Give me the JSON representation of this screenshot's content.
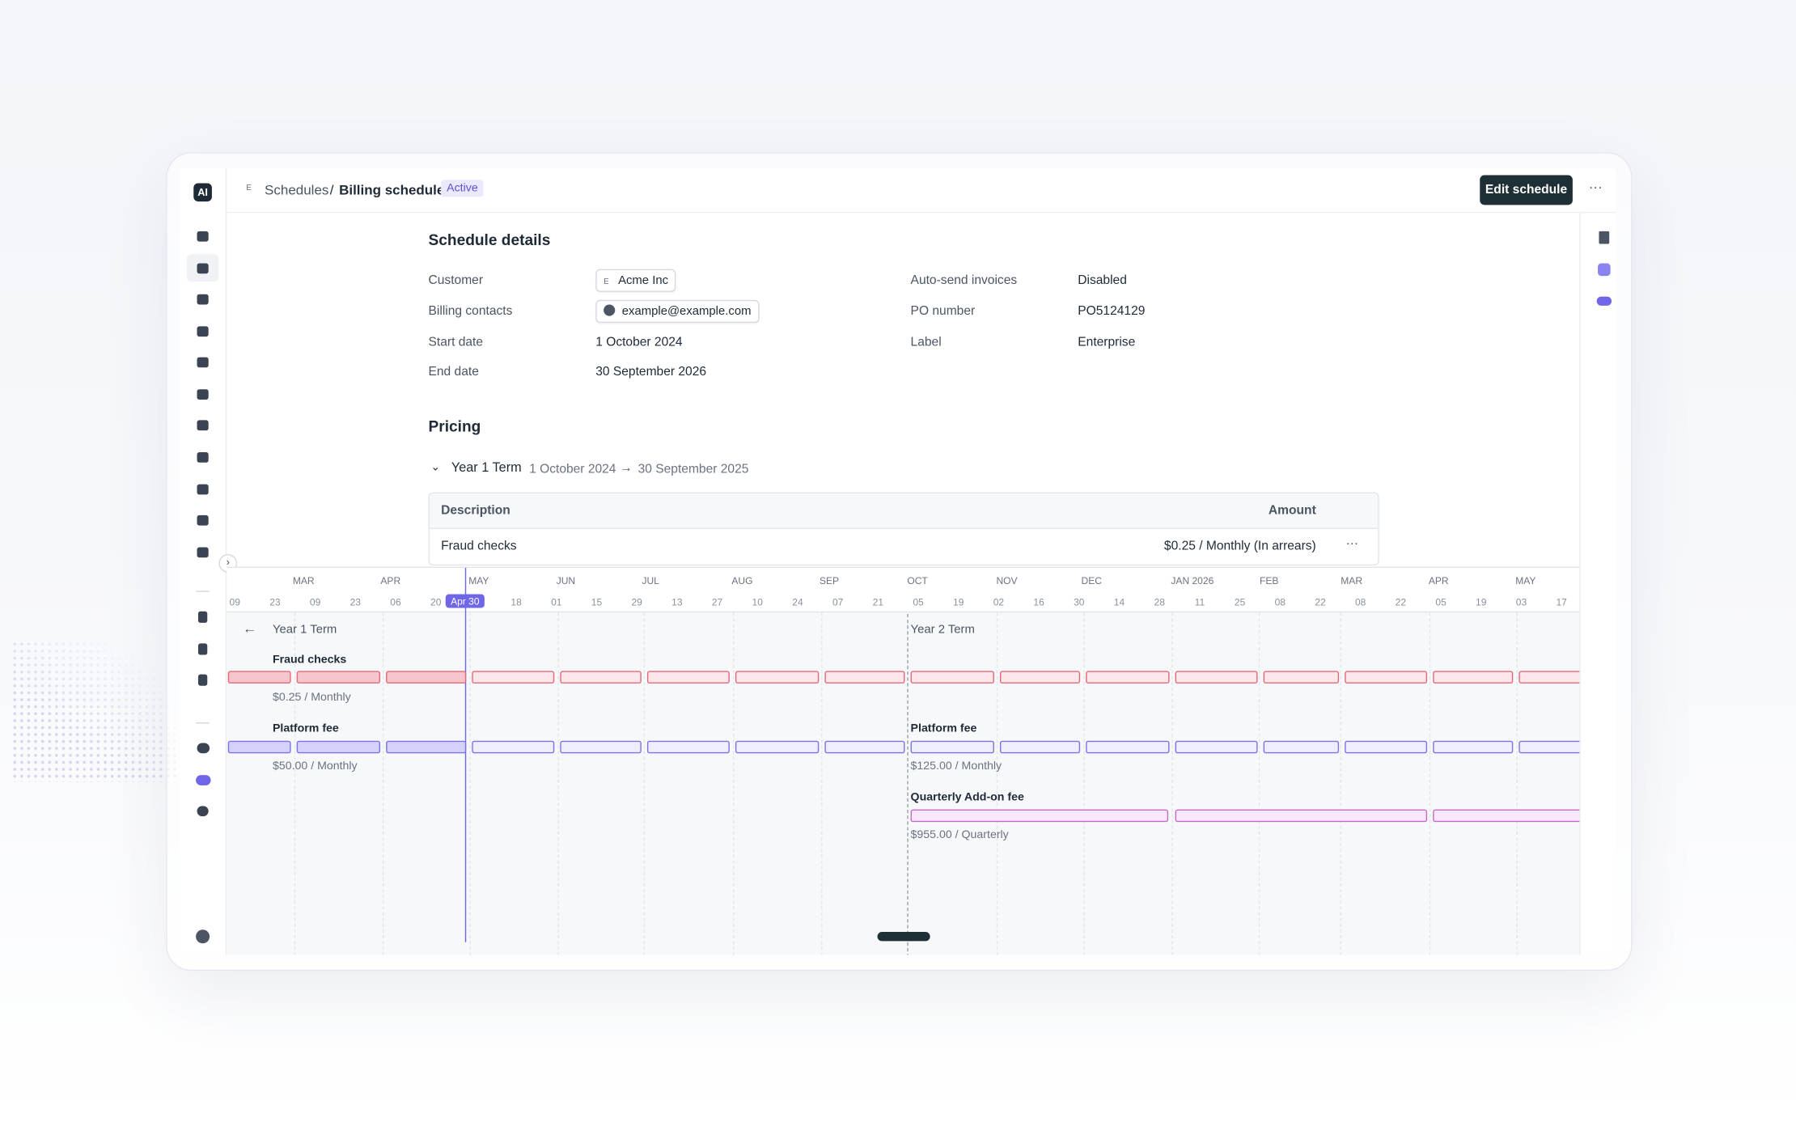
{
  "sidebar": {
    "logo": "AI"
  },
  "header": {
    "icon": "E",
    "breadcrumb": "Schedules",
    "separator": "/",
    "title": "Billing schedule",
    "status": "Active",
    "edit_button": "Edit schedule",
    "more": "···"
  },
  "details": {
    "title": "Schedule details",
    "fields": [
      {
        "label": "Customer",
        "icon": "E",
        "value": "Acme Inc"
      },
      {
        "label": "Billing contacts",
        "value": "example@example.com"
      },
      {
        "label": "Start date",
        "value": "1 October 2024"
      },
      {
        "label": "End date",
        "value": "30 September 2026"
      },
      {
        "label": "Auto-send invoices",
        "value": "Disabled"
      },
      {
        "label": "PO number",
        "value": "PO5124129"
      },
      {
        "label": "Label",
        "value": "Enterprise"
      }
    ]
  },
  "pricing": {
    "title": "Pricing",
    "term": {
      "name": "Year 1 Term",
      "start": "1 October 2024",
      "arrow": "→",
      "end": "30 September 2025"
    },
    "table": {
      "columns": [
        "Description",
        "Amount"
      ],
      "rows": [
        [
          "Fraud checks",
          "$0.25 / Monthly (In arrears)"
        ]
      ],
      "row_menu": "···"
    }
  },
  "timeline": {
    "months": [
      "MAR",
      "APR",
      "MAY",
      "JUN",
      "JUL",
      "AUG",
      "SEP",
      "OCT",
      "NOV",
      "DEC",
      "JAN 2026",
      "FEB",
      "MAR",
      "APR",
      "MAY"
    ],
    "days": [
      "09",
      "23",
      "09",
      "23",
      "06",
      "20",
      "18",
      "01",
      "15",
      "29",
      "13",
      "27",
      "10",
      "24",
      "07",
      "21",
      "05",
      "19",
      "02",
      "16",
      "30",
      "14",
      "28",
      "11",
      "25",
      "08",
      "22",
      "08",
      "22",
      "05",
      "19",
      "03",
      "17"
    ],
    "today": "Apr 30",
    "back": "←",
    "terms": [
      "Year 1 Term",
      "Year 2 Term"
    ],
    "lanes": [
      {
        "name": "Fraud checks",
        "price": "$0.25 / Monthly"
      },
      {
        "name": "Platform fee",
        "price": "$50.00 / Monthly"
      },
      {
        "name": "Platform fee",
        "price": "$125.00 / Monthly"
      },
      {
        "name": "Quarterly Add-on fee",
        "price": "$955.00 / Quarterly"
      }
    ]
  }
}
